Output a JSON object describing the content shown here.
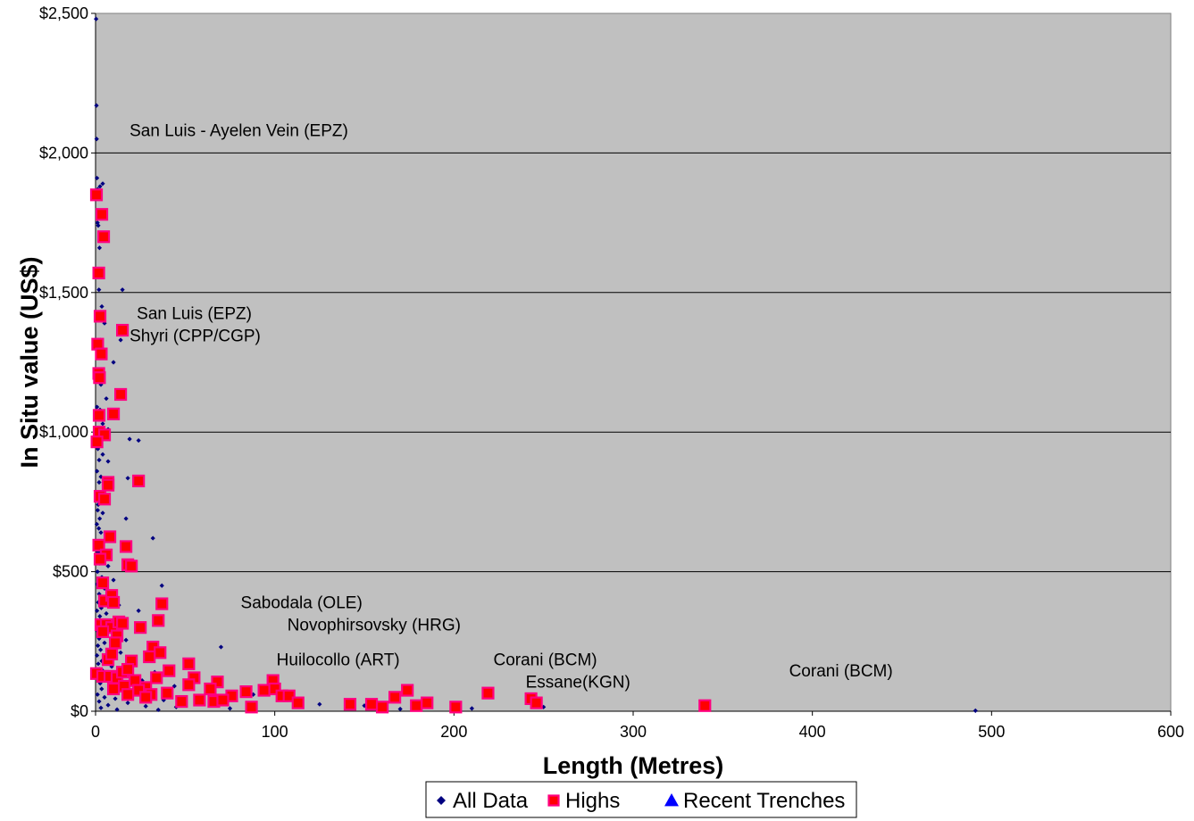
{
  "chart_data": {
    "type": "scatter",
    "xlabel": "Length (Metres)",
    "ylabel": "In Situ value (US$)",
    "xlim": [
      0,
      600
    ],
    "ylim": [
      0,
      2500
    ],
    "x_ticks": [
      "0",
      "100",
      "200",
      "300",
      "400",
      "500",
      "600"
    ],
    "y_ticks": [
      "$0",
      "$500",
      "$1,000",
      "$1,500",
      "$2,000",
      "$2,500"
    ],
    "grid": "horizontal",
    "plot_background": "#c0c0c0",
    "legend_position": "bottom",
    "series": [
      {
        "name": "All Data",
        "color": "#000080",
        "marker": "diamond",
        "points": [
          [
            0.3,
            2480
          ],
          [
            0.5,
            2170
          ],
          [
            0.6,
            2050
          ],
          [
            0.8,
            1910
          ],
          [
            1.2,
            1870
          ],
          [
            2.5,
            1880
          ],
          [
            4,
            1890
          ],
          [
            1.1,
            1750
          ],
          [
            1.5,
            1740
          ],
          [
            2.2,
            1660
          ],
          [
            0.8,
            1580
          ],
          [
            1.9,
            1510
          ],
          [
            15,
            1510
          ],
          [
            3.5,
            1450
          ],
          [
            5,
            1390
          ],
          [
            2.8,
            1330
          ],
          [
            14,
            1330
          ],
          [
            1.2,
            1300
          ],
          [
            4.2,
            1270
          ],
          [
            10,
            1250
          ],
          [
            1.5,
            1190
          ],
          [
            3,
            1170
          ],
          [
            6,
            1120
          ],
          [
            0.8,
            1090
          ],
          [
            2.5,
            1080
          ],
          [
            1.2,
            1050
          ],
          [
            4,
            1030
          ],
          [
            7,
            1010
          ],
          [
            0.7,
            980
          ],
          [
            19,
            975
          ],
          [
            24,
            970
          ],
          [
            1.3,
            940
          ],
          [
            4,
            920
          ],
          [
            2,
            900
          ],
          [
            7,
            895
          ],
          [
            0.8,
            860
          ],
          [
            3,
            840
          ],
          [
            18,
            835
          ],
          [
            2,
            820
          ],
          [
            5,
            810
          ],
          [
            0.8,
            780
          ],
          [
            2.5,
            760
          ],
          [
            1.5,
            740
          ],
          [
            1.2,
            720
          ],
          [
            4,
            710
          ],
          [
            2.3,
            690
          ],
          [
            17,
            690
          ],
          [
            0.7,
            670
          ],
          [
            1.8,
            655
          ],
          [
            3,
            640
          ],
          [
            32,
            620
          ],
          [
            1,
            600
          ],
          [
            2.6,
            590
          ],
          [
            1.4,
            570
          ],
          [
            4.5,
            555
          ],
          [
            0.8,
            540
          ],
          [
            2.2,
            530
          ],
          [
            7,
            520
          ],
          [
            1.1,
            500
          ],
          [
            3.5,
            480
          ],
          [
            10,
            470
          ],
          [
            0.9,
            455
          ],
          [
            5,
            440
          ],
          [
            2,
            420
          ],
          [
            8,
            410
          ],
          [
            37,
            450
          ],
          [
            1.5,
            390
          ],
          [
            13,
            380
          ],
          [
            3.2,
            370
          ],
          [
            0.8,
            360
          ],
          [
            6,
            350
          ],
          [
            2.4,
            340
          ],
          [
            24,
            360
          ],
          [
            1.1,
            320
          ],
          [
            4.2,
            310
          ],
          [
            9,
            300
          ],
          [
            0.7,
            290
          ],
          [
            3,
            280
          ],
          [
            11,
            270
          ],
          [
            2,
            260
          ],
          [
            17,
            255
          ],
          [
            5,
            245
          ],
          [
            1.3,
            235
          ],
          [
            70,
            230
          ],
          [
            2.8,
            220
          ],
          [
            14,
            210
          ],
          [
            0.8,
            200
          ],
          [
            6,
            190
          ],
          [
            3.5,
            180
          ],
          [
            20,
            175
          ],
          [
            1.5,
            170
          ],
          [
            9,
            160
          ],
          [
            50,
            165
          ],
          [
            2.2,
            150
          ],
          [
            4,
            145
          ],
          [
            33,
            140
          ],
          [
            0.8,
            130
          ],
          [
            12,
            125
          ],
          [
            6,
            115
          ],
          [
            26,
            110
          ],
          [
            100,
            115
          ],
          [
            2.6,
            100
          ],
          [
            15,
            95
          ],
          [
            44,
            90
          ],
          [
            8,
            85
          ],
          [
            3.4,
            80
          ],
          [
            21,
            75
          ],
          [
            64,
            70
          ],
          [
            1.1,
            60
          ],
          [
            30,
            55
          ],
          [
            5,
            50
          ],
          [
            11,
            45
          ],
          [
            88,
            60
          ],
          [
            38,
            40
          ],
          [
            2,
            35
          ],
          [
            18,
            30
          ],
          [
            57,
            30
          ],
          [
            125,
            25
          ],
          [
            7,
            22
          ],
          [
            28,
            18
          ],
          [
            45,
            15
          ],
          [
            150,
            20
          ],
          [
            3,
            12
          ],
          [
            75,
            10
          ],
          [
            170,
            8
          ],
          [
            12,
            6
          ],
          [
            35,
            5
          ],
          [
            210,
            10
          ],
          [
            250,
            15
          ],
          [
            491,
            2
          ]
        ]
      },
      {
        "name": "Highs",
        "color": "#ff0080",
        "marker": "square",
        "points": [
          [
            0.5,
            1850
          ],
          [
            3.5,
            1780
          ],
          [
            4.5,
            1700
          ],
          [
            1.8,
            1570
          ],
          [
            2.5,
            1415
          ],
          [
            1.2,
            1315
          ],
          [
            3.2,
            1280
          ],
          [
            15,
            1365
          ],
          [
            1.8,
            1210
          ],
          [
            2.2,
            1195
          ],
          [
            14,
            1135
          ],
          [
            2,
            1060
          ],
          [
            10,
            1065
          ],
          [
            2,
            1000
          ],
          [
            5,
            990
          ],
          [
            0.8,
            965
          ],
          [
            24,
            825
          ],
          [
            7,
            820
          ],
          [
            7,
            810
          ],
          [
            2.5,
            770
          ],
          [
            5,
            760
          ],
          [
            8,
            625
          ],
          [
            1.8,
            595
          ],
          [
            17,
            590
          ],
          [
            6,
            560
          ],
          [
            18,
            525
          ],
          [
            20,
            520
          ],
          [
            2.5,
            545
          ],
          [
            4,
            460
          ],
          [
            5,
            395
          ],
          [
            37,
            385
          ],
          [
            9,
            415
          ],
          [
            10,
            390
          ],
          [
            35,
            325
          ],
          [
            3,
            310
          ],
          [
            6,
            310
          ],
          [
            9,
            300
          ],
          [
            13,
            320
          ],
          [
            15,
            315
          ],
          [
            25,
            300
          ],
          [
            4,
            285
          ],
          [
            12,
            270
          ],
          [
            32,
            230
          ],
          [
            11,
            245
          ],
          [
            36,
            210
          ],
          [
            30,
            195
          ],
          [
            7,
            185
          ],
          [
            9,
            205
          ],
          [
            20,
            180
          ],
          [
            52,
            170
          ],
          [
            0.5,
            135
          ],
          [
            4,
            125
          ],
          [
            8,
            125
          ],
          [
            12,
            120
          ],
          [
            15,
            140
          ],
          [
            18,
            150
          ],
          [
            22,
            110
          ],
          [
            28,
            85
          ],
          [
            34,
            120
          ],
          [
            41,
            145
          ],
          [
            55,
            120
          ],
          [
            68,
            105
          ],
          [
            99,
            110
          ],
          [
            10,
            80
          ],
          [
            16,
            90
          ],
          [
            24,
            75
          ],
          [
            31,
            60
          ],
          [
            40,
            65
          ],
          [
            52,
            95
          ],
          [
            64,
            80
          ],
          [
            84,
            70
          ],
          [
            94,
            75
          ],
          [
            100,
            80
          ],
          [
            104,
            55
          ],
          [
            108,
            55
          ],
          [
            18,
            60
          ],
          [
            28,
            50
          ],
          [
            48,
            35
          ],
          [
            58,
            40
          ],
          [
            66,
            35
          ],
          [
            76,
            55
          ],
          [
            71,
            40
          ],
          [
            87,
            15
          ],
          [
            113,
            30
          ],
          [
            142,
            25
          ],
          [
            154,
            25
          ],
          [
            160,
            15
          ],
          [
            167,
            50
          ],
          [
            174,
            75
          ],
          [
            179,
            20
          ],
          [
            185,
            30
          ],
          [
            201,
            15
          ],
          [
            219,
            65
          ],
          [
            243,
            45
          ],
          [
            246,
            30
          ],
          [
            340,
            20
          ]
        ]
      },
      {
        "name": "Recent Trenches",
        "color": "#0000ff",
        "marker": "triangle",
        "points": []
      }
    ],
    "annotations": [
      {
        "text": "San Luis - Ayelen Vein (EPZ)",
        "x": 19,
        "y": 2060
      },
      {
        "text": "San Luis (EPZ)",
        "x": 23,
        "y": 1405
      },
      {
        "text": "Shyri (CPP/CGP)",
        "x": 19,
        "y": 1325
      },
      {
        "text": "Sabodala (OLE)",
        "x": 81,
        "y": 370
      },
      {
        "text": "Novophirsovsky (HRG)",
        "x": 107,
        "y": 290
      },
      {
        "text": "Huilocollo (ART)",
        "x": 101,
        "y": 165
      },
      {
        "text": "Corani (BCM)",
        "x": 222,
        "y": 165
      },
      {
        "text": "Essane(KGN)",
        "x": 240,
        "y": 85
      },
      {
        "text": "Corani (BCM)",
        "x": 387,
        "y": 125
      }
    ]
  }
}
